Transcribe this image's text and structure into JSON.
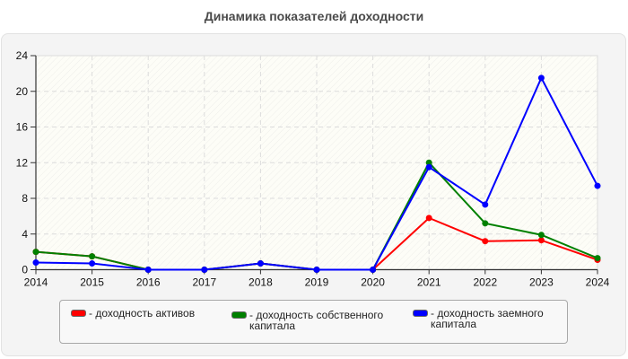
{
  "title": "Динамика показателей доходности",
  "chart_data": {
    "type": "line",
    "title": "Динамика показателей доходности",
    "xlabel": "",
    "ylabel": "",
    "categories": [
      "2014",
      "2015",
      "2016",
      "2017",
      "2018",
      "2019",
      "2020",
      "2021",
      "2022",
      "2023",
      "2024"
    ],
    "ylim": [
      0,
      24
    ],
    "yticks": [
      0,
      4,
      8,
      12,
      16,
      20,
      24
    ],
    "grid": true,
    "legend_position": "bottom",
    "series": [
      {
        "name": "- доходность активов",
        "color": "#ff0000",
        "values": [
          2.0,
          1.5,
          0,
          0,
          0.7,
          0,
          0,
          5.8,
          3.2,
          3.3,
          1.1
        ]
      },
      {
        "name": "- доходность собственного капитала",
        "color": "#008000",
        "values": [
          2.0,
          1.5,
          0,
          0,
          0.7,
          0,
          0,
          12.0,
          5.2,
          3.9,
          1.3
        ]
      },
      {
        "name": "- доходность заемного капитала",
        "color": "#0000ff",
        "values": [
          0.8,
          0.7,
          0,
          0,
          0.7,
          0,
          0,
          11.5,
          7.3,
          21.5,
          9.4
        ]
      }
    ]
  },
  "legend": {
    "items": [
      {
        "label": "- доходность активов",
        "color": "#ff0000"
      },
      {
        "label": "- доходность собственного капитала",
        "color": "#008000"
      },
      {
        "label": "- доходность заемного капитала",
        "color": "#0000ff"
      }
    ]
  }
}
